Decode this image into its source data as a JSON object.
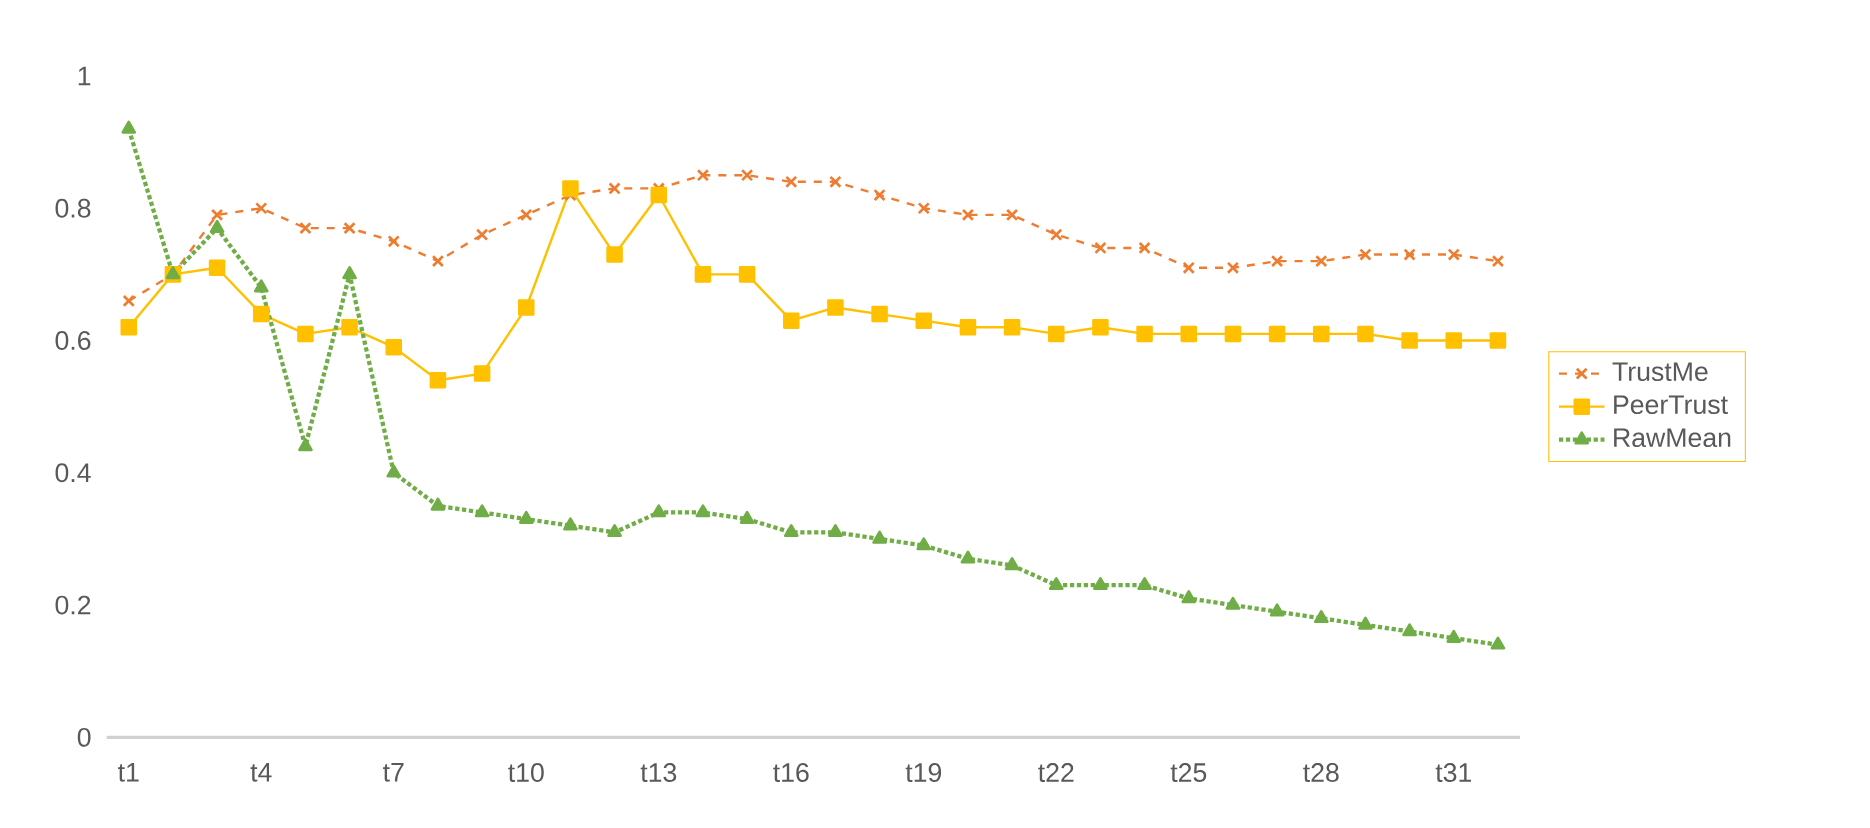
{
  "chart_data": {
    "type": "line",
    "categories": [
      "t1",
      null,
      null,
      "t4",
      null,
      null,
      "t7",
      null,
      null,
      "t10",
      null,
      null,
      "t13",
      null,
      null,
      "t16",
      null,
      null,
      "t19",
      null,
      null,
      "t22",
      null,
      null,
      "t25",
      null,
      null,
      "t28",
      null,
      null,
      "t31",
      null
    ],
    "series": [
      {
        "name": "TrustMe",
        "color": "#ed7d31",
        "marker": "cross",
        "line_style": "dashed",
        "values": [
          0.66,
          0.7,
          0.79,
          0.8,
          0.77,
          0.77,
          0.75,
          0.72,
          0.76,
          0.79,
          0.82,
          0.83,
          0.83,
          0.85,
          0.85,
          0.84,
          0.84,
          0.82,
          0.8,
          0.79,
          0.79,
          0.76,
          0.74,
          0.74,
          0.71,
          0.71,
          0.72,
          0.72,
          0.73,
          0.73,
          0.73,
          0.72
        ]
      },
      {
        "name": "PeerTrust",
        "color": "#ffc000",
        "marker": "square",
        "line_style": "solid",
        "values": [
          0.62,
          0.7,
          0.71,
          0.64,
          0.61,
          0.62,
          0.59,
          0.54,
          0.55,
          0.65,
          0.83,
          0.73,
          0.82,
          0.7,
          0.7,
          0.63,
          0.65,
          0.64,
          0.63,
          0.62,
          0.62,
          0.61,
          0.62,
          0.61,
          0.61,
          0.61,
          0.61,
          0.61,
          0.61,
          0.6,
          0.6,
          0.6
        ]
      },
      {
        "name": "RawMean",
        "color": "#70ad47",
        "marker": "triangle",
        "line_style": "dotted",
        "values": [
          0.92,
          0.7,
          0.77,
          0.68,
          0.44,
          0.7,
          0.4,
          0.35,
          0.34,
          0.33,
          0.32,
          0.31,
          0.34,
          0.34,
          0.33,
          0.31,
          0.31,
          0.3,
          0.29,
          0.27,
          0.26,
          0.23,
          0.23,
          0.23,
          0.21,
          0.2,
          0.19,
          0.18,
          0.17,
          0.16,
          0.15,
          0.14
        ]
      }
    ],
    "ylim": [
      0,
      1
    ],
    "yticks": [
      0,
      0.2,
      0.4,
      0.6,
      0.8,
      1
    ],
    "legend": "right"
  }
}
